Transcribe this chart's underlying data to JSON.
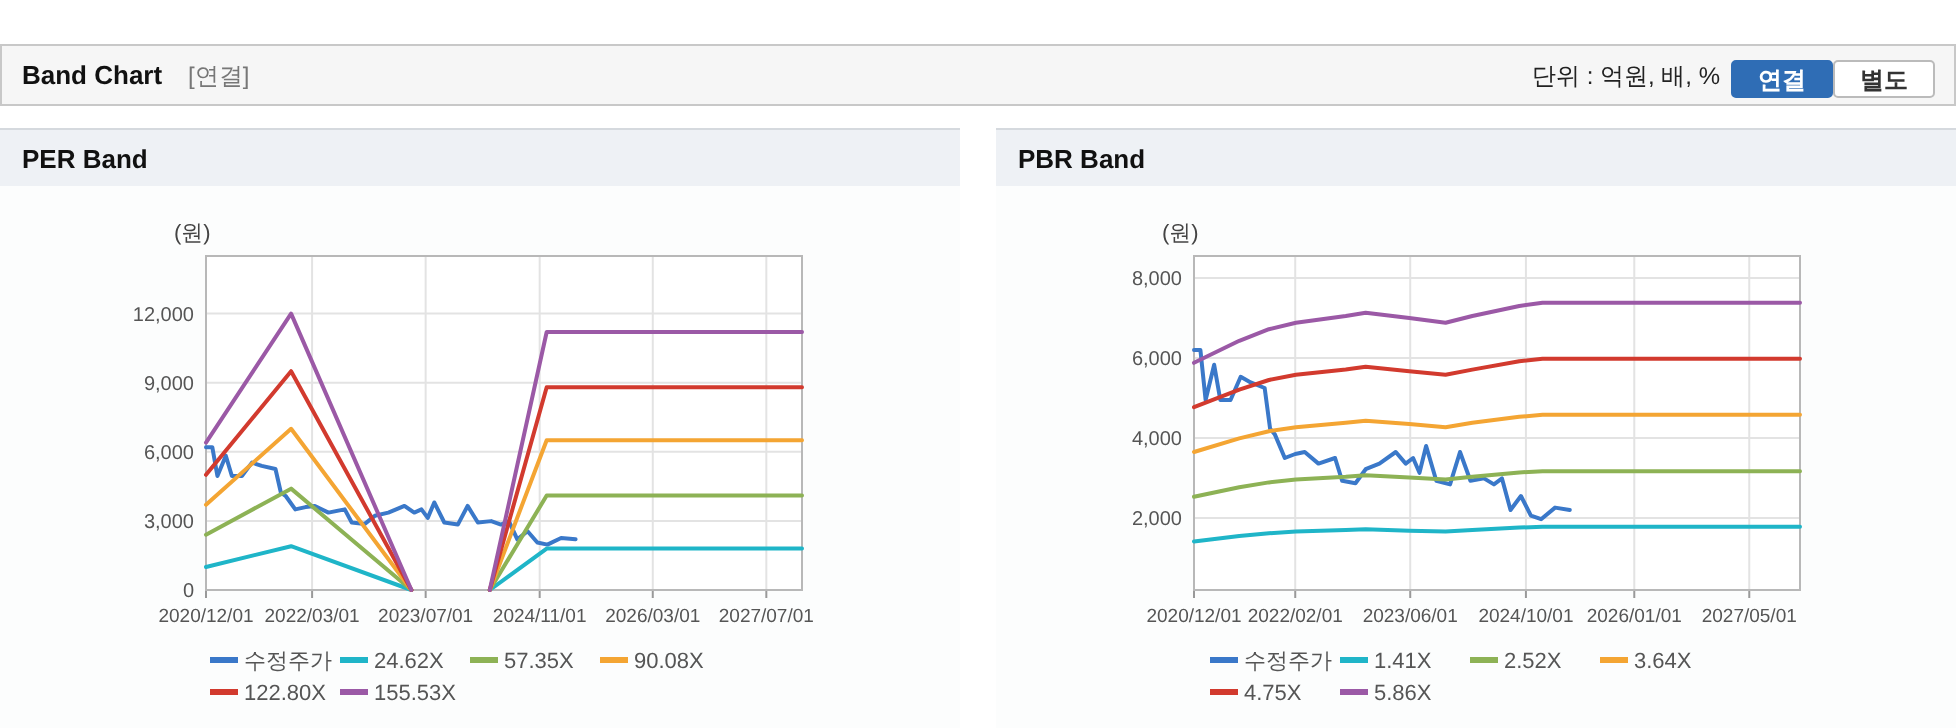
{
  "chart_data": [
    {
      "type": "other",
      "title": "Band Chart",
      "annotations": [
        "[연결]",
        "단위 : 억원, 배, %",
        "연결",
        "별도"
      ]
    },
    {
      "type": "line",
      "title": "PER Band",
      "ylabel": "(원)",
      "grid": true,
      "legend": "bottom",
      "xlim": [
        "2020-12-01",
        "2027-12-01"
      ],
      "xticks": [
        {
          "value": "2020-12-01",
          "label": "2020/12/01"
        },
        {
          "value": "2022-03-01",
          "label": "2022/03/01"
        },
        {
          "value": "2023-07-01",
          "label": "2023/07/01"
        },
        {
          "value": "2024-11-01",
          "label": "2024/11/01"
        },
        {
          "value": "2026-03-01",
          "label": "2026/03/01"
        },
        {
          "value": "2027-07-01",
          "label": "2027/07/01"
        }
      ],
      "ylim": [
        0,
        14500
      ],
      "yticks": [
        0,
        {
          "value": 3000,
          "label": "3,000"
        },
        {
          "value": 6000,
          "label": "6,000"
        },
        {
          "value": 9000,
          "label": "9,000"
        },
        {
          "value": 12000,
          "label": "12,000"
        }
      ],
      "series": [
        {
          "name": "수정주가",
          "color": "#3a78c9",
          "x": [
            "2020-12-01",
            "2020-12-28",
            "2021-01-19",
            "2021-02-24",
            "2021-03-22",
            "2021-05-04",
            "2021-06-16",
            "2021-07-28",
            "2021-09-25",
            "2021-10-18",
            "2021-11-07",
            "2021-12-19",
            "2022-02-01",
            "2022-03-13",
            "2022-05-10",
            "2022-07-19",
            "2022-08-18",
            "2022-10-13",
            "2022-11-25",
            "2023-01-22",
            "2023-04-01",
            "2023-05-13",
            "2023-06-13",
            "2023-07-10",
            "2023-08-07",
            "2023-09-19",
            "2023-11-16",
            "2023-12-28",
            "2024-02-10",
            "2024-04-07",
            "2024-05-19",
            "2024-06-22",
            "2024-07-28",
            "2024-09-10",
            "2024-10-22",
            "2024-12-04",
            "2025-02-01",
            "2025-04-04"
          ],
          "values": [
            6200,
            6200,
            4950,
            5830,
            4950,
            4950,
            5530,
            5390,
            5250,
            4230,
            4090,
            3500,
            3600,
            3650,
            3360,
            3500,
            2930,
            2870,
            3220,
            3360,
            3650,
            3360,
            3500,
            3130,
            3800,
            2930,
            2840,
            3650,
            2930,
            2990,
            2840,
            2990,
            2200,
            2550,
            2060,
            1970,
            2260,
            2200
          ]
        },
        {
          "name": "24.62X",
          "color": "#1fb5c8",
          "x": [
            "2020-12-01",
            "2021-12-01",
            "2023-05-01"
          ],
          "values": [
            1000,
            1900,
            0
          ]
        },
        {
          "name": "57.35X",
          "color": "#8db255",
          "x": [
            "2020-12-01",
            "2021-12-01",
            "2023-05-01"
          ],
          "values": [
            2400,
            4400,
            0
          ]
        },
        {
          "name": "90.08X",
          "color": "#f4a533",
          "x": [
            "2020-12-01",
            "2021-12-01",
            "2023-05-01"
          ],
          "values": [
            3700,
            7000,
            0
          ]
        },
        {
          "name": "122.80X",
          "color": "#d23a2e",
          "x": [
            "2020-12-01",
            "2021-12-01",
            "2023-05-01"
          ],
          "values": [
            5000,
            9500,
            0
          ]
        },
        {
          "name": "155.53X",
          "color": "#9b59a6",
          "x": [
            "2020-12-01",
            "2021-12-01",
            "2023-05-01"
          ],
          "values": [
            6400,
            12000,
            0
          ]
        },
        {
          "color": "#1fb5c8",
          "x": [
            "2024-04-01",
            "2024-12-01",
            "2027-12-01"
          ],
          "values": [
            0,
            1800,
            1800
          ]
        },
        {
          "color": "#8db255",
          "x": [
            "2024-04-01",
            "2024-12-01",
            "2027-12-01"
          ],
          "values": [
            0,
            4100,
            4100
          ]
        },
        {
          "color": "#f4a533",
          "x": [
            "2024-04-01",
            "2024-12-01",
            "2027-12-01"
          ],
          "values": [
            0,
            6500,
            6500
          ]
        },
        {
          "color": "#d23a2e",
          "x": [
            "2024-04-01",
            "2024-12-01",
            "2027-12-01"
          ],
          "values": [
            0,
            8800,
            8800
          ]
        },
        {
          "color": "#9b59a6",
          "x": [
            "2024-04-01",
            "2024-12-01",
            "2027-12-01"
          ],
          "values": [
            0,
            11200,
            11200
          ]
        }
      ]
    },
    {
      "type": "line",
      "title": "PBR Band",
      "ylabel": "(원)",
      "grid": true,
      "legend": "bottom",
      "xlim": [
        "2020-12-01",
        "2027-12-01"
      ],
      "xticks": [
        {
          "value": "2020-12-01",
          "label": "2020/12/01"
        },
        {
          "value": "2022-02-01",
          "label": "2022/02/01"
        },
        {
          "value": "2023-06-01",
          "label": "2023/06/01"
        },
        {
          "value": "2024-10-01",
          "label": "2024/10/01"
        },
        {
          "value": "2026-01-01",
          "label": "2026/01/01"
        },
        {
          "value": "2027-05-01",
          "label": "2027/05/01"
        }
      ],
      "ylim": [
        200,
        8550
      ],
      "yticks": [
        {
          "value": 2000,
          "label": "2,000"
        },
        {
          "value": 4000,
          "label": "4,000"
        },
        {
          "value": 6000,
          "label": "6,000"
        },
        {
          "value": 8000,
          "label": "8,000"
        }
      ],
      "series": [
        {
          "name": "수정주가",
          "color": "#3a78c9",
          "x": [
            "2020-12-01",
            "2020-12-28",
            "2021-01-19",
            "2021-02-24",
            "2021-03-22",
            "2021-05-04",
            "2021-06-16",
            "2021-07-28",
            "2021-09-25",
            "2021-10-18",
            "2021-11-07",
            "2021-12-19",
            "2022-02-01",
            "2022-03-13",
            "2022-05-10",
            "2022-07-19",
            "2022-08-18",
            "2022-10-13",
            "2022-11-25",
            "2023-01-22",
            "2023-04-01",
            "2023-05-13",
            "2023-06-13",
            "2023-07-10",
            "2023-08-07",
            "2023-09-19",
            "2023-11-16",
            "2023-12-28",
            "2024-02-10",
            "2024-04-07",
            "2024-05-19",
            "2024-06-22",
            "2024-07-28",
            "2024-09-10",
            "2024-10-22",
            "2024-12-04",
            "2025-02-01",
            "2025-04-04"
          ],
          "values": [
            6200,
            6200,
            4950,
            5830,
            4950,
            4950,
            5530,
            5390,
            5250,
            4230,
            4090,
            3500,
            3600,
            3650,
            3360,
            3500,
            2930,
            2870,
            3220,
            3360,
            3650,
            3360,
            3500,
            3130,
            3800,
            2930,
            2840,
            3650,
            2930,
            2990,
            2840,
            2990,
            2200,
            2550,
            2060,
            1970,
            2260,
            2200
          ]
        },
        {
          "name": "1.41X",
          "color": "#1fb5c8",
          "x": [
            "2020-12-01",
            "2021-06-10",
            "2021-10-13",
            "2022-02-04",
            "2022-09-02",
            "2022-11-25",
            "2023-05-28",
            "2023-10-28",
            "2024-02-18",
            "2024-09-03",
            "2024-12-10",
            "2027-12-01"
          ],
          "values": [
            1410,
            1550,
            1620,
            1660,
            1700,
            1720,
            1680,
            1660,
            1700,
            1760,
            1780,
            1780
          ]
        },
        {
          "name": "2.52X",
          "color": "#8db255",
          "x": [
            "2020-12-01",
            "2021-06-10",
            "2021-10-13",
            "2022-02-04",
            "2022-09-02",
            "2022-11-25",
            "2023-05-28",
            "2023-10-28",
            "2024-02-18",
            "2024-09-03",
            "2024-12-10",
            "2027-12-01"
          ],
          "values": [
            2530,
            2770,
            2890,
            2960,
            3030,
            3070,
            3010,
            2960,
            3030,
            3140,
            3170,
            3170
          ]
        },
        {
          "name": "3.64X",
          "color": "#f4a533",
          "x": [
            "2020-12-01",
            "2021-06-10",
            "2021-10-13",
            "2022-02-04",
            "2022-09-02",
            "2022-11-25",
            "2023-05-28",
            "2023-10-28",
            "2024-02-18",
            "2024-09-03",
            "2024-12-10",
            "2027-12-01"
          ],
          "values": [
            3650,
            3990,
            4170,
            4270,
            4380,
            4430,
            4350,
            4270,
            4380,
            4530,
            4580,
            4580
          ]
        },
        {
          "name": "4.75X",
          "color": "#d23a2e",
          "x": [
            "2020-12-01",
            "2021-06-10",
            "2021-10-13",
            "2022-02-04",
            "2022-09-02",
            "2022-11-25",
            "2023-05-28",
            "2023-10-28",
            "2024-02-18",
            "2024-09-03",
            "2024-12-10",
            "2027-12-01"
          ],
          "values": [
            4770,
            5210,
            5450,
            5580,
            5710,
            5780,
            5670,
            5580,
            5710,
            5920,
            5980,
            5980
          ]
        },
        {
          "name": "5.86X",
          "color": "#9b59a6",
          "x": [
            "2020-12-01",
            "2021-06-10",
            "2021-10-13",
            "2022-02-04",
            "2022-09-02",
            "2022-11-25",
            "2023-05-28",
            "2023-10-28",
            "2024-02-18",
            "2024-09-03",
            "2024-12-10",
            "2027-12-01"
          ],
          "values": [
            5880,
            6430,
            6720,
            6880,
            7050,
            7130,
            7000,
            6880,
            7050,
            7300,
            7380,
            7380
          ]
        }
      ]
    }
  ]
}
